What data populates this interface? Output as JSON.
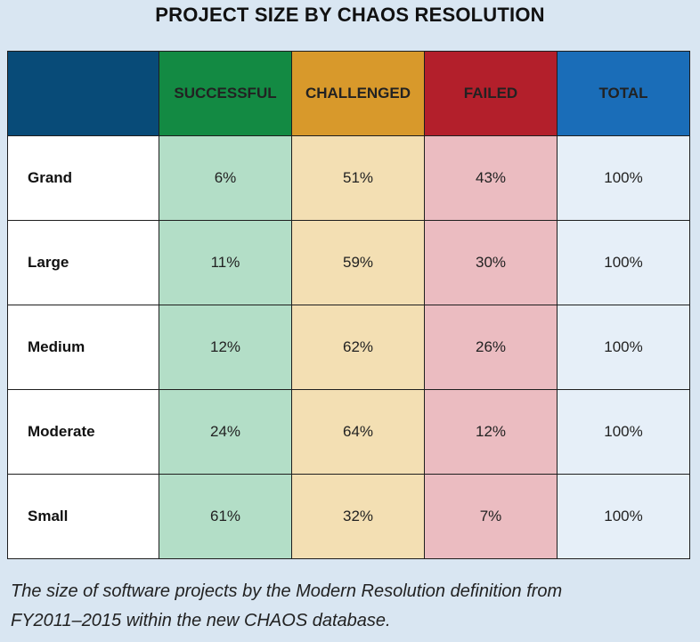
{
  "title": "PROJECT SIZE BY CHAOS RESOLUTION",
  "caption_line1": "The size of software projects by the Modern Resolution definition from",
  "caption_line2": "FY2011–2015 within the new CHAOS database.",
  "colors": {
    "successful_header": "#138a43",
    "challenged_header": "#d8992b",
    "failed_header": "#b31f2b",
    "total_header": "#1a6db8",
    "corner": "#084b78",
    "successful_cell": "#b3dec7",
    "challenged_cell": "#f3dfb3",
    "failed_cell": "#ebbcc1",
    "total_cell": "#e6eff8",
    "background": "#d9e6f2"
  },
  "chart_data": {
    "type": "table",
    "title": "PROJECT SIZE BY CHAOS RESOLUTION",
    "columns": [
      "SUCCESSFUL",
      "CHALLENGED",
      "FAILED",
      "TOTAL"
    ],
    "rows": [
      {
        "label": "Grand",
        "cells": [
          "6%",
          "51%",
          "43%",
          "100%"
        ]
      },
      {
        "label": "Large",
        "cells": [
          "11%",
          "59%",
          "30%",
          "100%"
        ]
      },
      {
        "label": "Medium",
        "cells": [
          "12%",
          "62%",
          "26%",
          "100%"
        ]
      },
      {
        "label": "Moderate",
        "cells": [
          "24%",
          "64%",
          "12%",
          "100%"
        ]
      },
      {
        "label": "Small",
        "cells": [
          "61%",
          "32%",
          "7%",
          "100%"
        ]
      }
    ]
  }
}
